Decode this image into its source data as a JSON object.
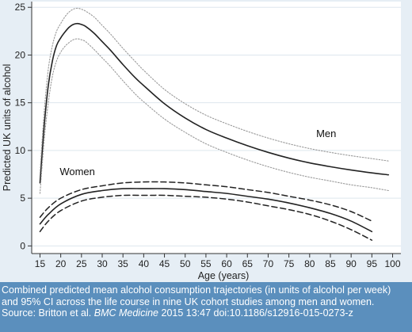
{
  "caption": {
    "text": "Combined predicted mean alcohol consumption trajectories (in units of alcohol per week) and 95% CI across the life course in nine UK cohort studies among men and women.",
    "source_prefix": "Source: Britton et al. ",
    "source_journal": "BMC Medicine",
    "source_suffix": " 2015 13:47 doi:10.1186/s12916-015-0273-z"
  },
  "colors": {
    "background": "#e6eef5",
    "plot_area": "#ffffff",
    "caption_bg": "#5b8fbd",
    "line": "#222222",
    "ci_men": "#9a9a9a"
  },
  "chart_data": {
    "type": "line",
    "xlabel": "Age (years)",
    "ylabel": "Predicted UK units of alcohol",
    "xlim": [
      13,
      102
    ],
    "ylim": [
      -0.8,
      25.6
    ],
    "xticks": [
      15,
      20,
      25,
      30,
      35,
      40,
      45,
      50,
      55,
      60,
      65,
      70,
      75,
      80,
      85,
      90,
      95,
      100
    ],
    "yticks": [
      0,
      5,
      10,
      15,
      20,
      25
    ],
    "grid": "horizontal",
    "series": [
      {
        "name": "Men",
        "style": "solid",
        "x": [
          15,
          16,
          17,
          18,
          19,
          20,
          21,
          22,
          23,
          24,
          25,
          26,
          28,
          30,
          32,
          35,
          38,
          40,
          45,
          50,
          55,
          60,
          65,
          70,
          75,
          80,
          85,
          90,
          95,
          99
        ],
        "y": [
          6.6,
          12.5,
          16.8,
          19.4,
          21.0,
          21.8,
          22.4,
          22.9,
          23.2,
          23.3,
          23.2,
          23.0,
          22.3,
          21.4,
          20.5,
          19.0,
          17.6,
          16.8,
          14.9,
          13.4,
          12.2,
          11.3,
          10.5,
          9.8,
          9.2,
          8.7,
          8.3,
          7.95,
          7.65,
          7.45
        ]
      },
      {
        "name": "Men 95% CI upper",
        "style": "dotted",
        "x": [
          15,
          16,
          17,
          18,
          19,
          20,
          21,
          22,
          23,
          24,
          25,
          26,
          28,
          30,
          32,
          35,
          38,
          40,
          45,
          50,
          55,
          60,
          65,
          70,
          75,
          80,
          85,
          90,
          95,
          99
        ],
        "y": [
          7.6,
          14.0,
          18.5,
          21.0,
          22.5,
          23.3,
          24.0,
          24.5,
          24.8,
          24.9,
          24.8,
          24.6,
          24.0,
          23.1,
          22.2,
          20.7,
          19.3,
          18.4,
          16.4,
          14.9,
          13.7,
          12.8,
          12.0,
          11.3,
          10.7,
          10.2,
          9.8,
          9.45,
          9.15,
          8.9
        ]
      },
      {
        "name": "Men 95% CI lower",
        "style": "dotted",
        "x": [
          15,
          16,
          17,
          18,
          19,
          20,
          21,
          22,
          23,
          24,
          25,
          26,
          28,
          30,
          32,
          35,
          38,
          40,
          45,
          50,
          55,
          60,
          65,
          70,
          75,
          80,
          85,
          90,
          95,
          99
        ],
        "y": [
          5.5,
          11.0,
          15.0,
          17.8,
          19.4,
          20.3,
          20.9,
          21.3,
          21.6,
          21.7,
          21.6,
          21.4,
          20.6,
          19.7,
          18.8,
          17.3,
          15.9,
          15.1,
          13.3,
          11.9,
          10.7,
          9.8,
          9.0,
          8.3,
          7.7,
          7.2,
          6.8,
          6.4,
          6.1,
          5.8
        ]
      },
      {
        "name": "Women",
        "style": "solid",
        "x": [
          15,
          17,
          20,
          25,
          30,
          35,
          40,
          45,
          50,
          55,
          60,
          65,
          70,
          75,
          80,
          85,
          90,
          95
        ],
        "y": [
          2.3,
          3.3,
          4.4,
          5.4,
          5.8,
          6.0,
          6.0,
          6.0,
          5.9,
          5.7,
          5.5,
          5.2,
          4.9,
          4.5,
          4.0,
          3.4,
          2.6,
          1.5
        ]
      },
      {
        "name": "Women 95% CI upper",
        "style": "dashed",
        "x": [
          15,
          17,
          20,
          25,
          30,
          35,
          40,
          45,
          50,
          55,
          60,
          65,
          70,
          75,
          80,
          85,
          90,
          95
        ],
        "y": [
          3.0,
          4.0,
          5.0,
          5.9,
          6.3,
          6.6,
          6.7,
          6.7,
          6.6,
          6.4,
          6.2,
          5.9,
          5.6,
          5.2,
          4.8,
          4.3,
          3.6,
          2.6
        ]
      },
      {
        "name": "Women 95% CI lower",
        "style": "dashed",
        "x": [
          15,
          17,
          20,
          25,
          30,
          35,
          40,
          45,
          50,
          55,
          60,
          65,
          70,
          75,
          80,
          85,
          90,
          95
        ],
        "y": [
          1.5,
          2.6,
          3.7,
          4.7,
          5.1,
          5.3,
          5.3,
          5.3,
          5.2,
          5.1,
          4.9,
          4.6,
          4.2,
          3.8,
          3.3,
          2.6,
          1.7,
          0.6
        ]
      }
    ],
    "annotations": [
      {
        "text": "Men",
        "x": 84,
        "y": 11.4
      },
      {
        "text": "Women",
        "x": 24,
        "y": 7.4
      }
    ]
  }
}
